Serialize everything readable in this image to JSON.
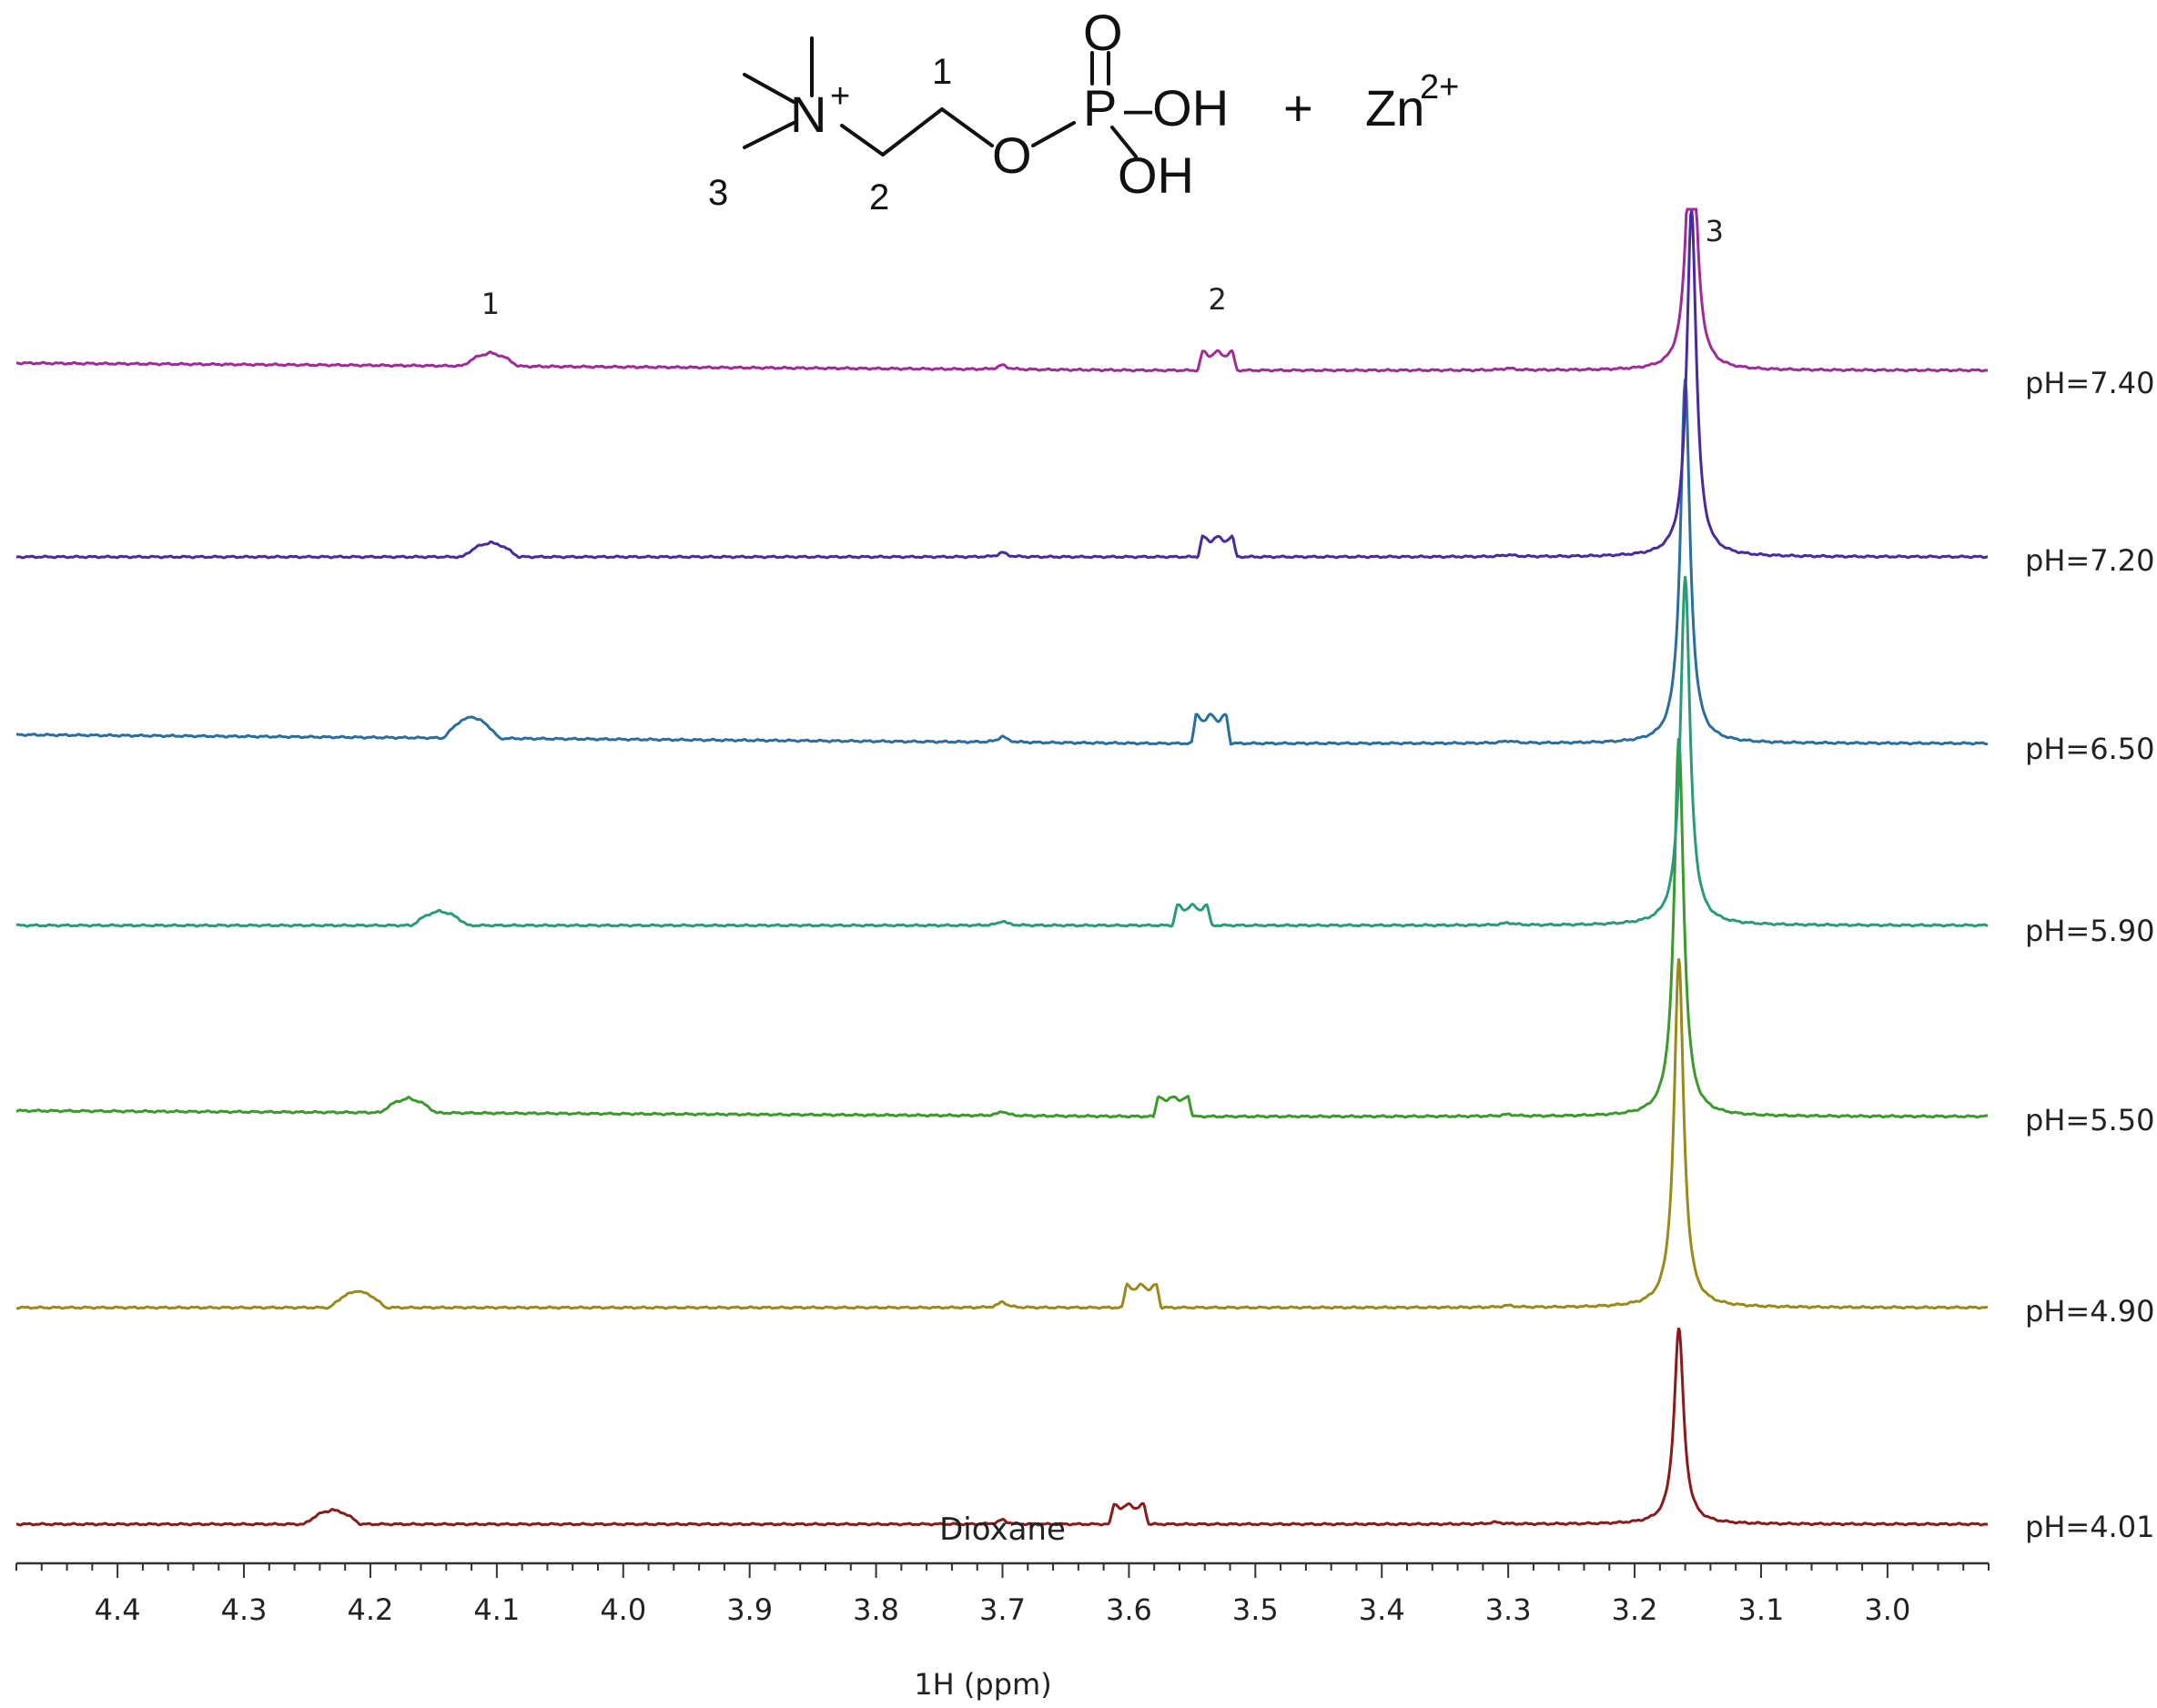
{
  "structure": {
    "atoms": {
      "nitrogen": "N",
      "nitrogen_charge": "+",
      "oxygen_bridge": "O",
      "oxygen_double": "O",
      "phosphorus": "P",
      "hydroxyl_top": "–OH",
      "hydroxyl_bottom": "OH"
    },
    "position_labels": {
      "p1": "1",
      "p2": "2",
      "p3": "3"
    },
    "plus_sign": "+",
    "metal_ion": "Zn",
    "metal_charge": "2+"
  },
  "chart_data": {
    "type": "line",
    "title": "",
    "xlabel": "1H (ppm)",
    "ylabel": "",
    "x_direction": "descending",
    "xlim": [
      4.48,
      2.92
    ],
    "x_ticks_major": [
      4.4,
      4.3,
      4.2,
      4.1,
      4.0,
      3.9,
      3.8,
      3.7,
      3.6,
      3.5,
      3.4,
      3.3,
      3.2,
      3.1,
      3.0
    ],
    "x_tick_labels": [
      "4.4",
      "4.3",
      "4.2",
      "4.1",
      "4.0",
      "3.9",
      "3.8",
      "3.7",
      "3.6",
      "3.5",
      "3.4",
      "3.3",
      "3.2",
      "3.1",
      "3.0"
    ],
    "x_minor_step": 0.02,
    "grid": false,
    "stacked": true,
    "annotations": {
      "peak_1": "1",
      "peak_2": "2",
      "peak_3": "3",
      "solvent_peak": "Dioxane",
      "peak_1_ppm": 4.105,
      "peak_2_ppm": 3.53,
      "peak_3_ppm": 3.16,
      "solvent_ppm": 3.7
    },
    "series": [
      {
        "name": "pH=4.01",
        "color": "#8b1a1a",
        "baseline_tilt": 0.0,
        "peaks": [
          {
            "ppm": 4.23,
            "height": 0.12,
            "width": 0.014,
            "shape": "broad"
          },
          {
            "ppm": 3.6,
            "height": 0.14,
            "width": 0.012,
            "shape": "multiplet"
          },
          {
            "ppm": 3.7,
            "height": 0.03,
            "width": 0.004,
            "shape": "sharp"
          },
          {
            "ppm": 3.31,
            "height": 0.012,
            "width": 0.006,
            "shape": "sharp"
          },
          {
            "ppm": 3.165,
            "height": 1.35,
            "width": 0.0045,
            "shape": "sharp"
          }
        ]
      },
      {
        "name": "pH=4.90",
        "color": "#9a8a1a",
        "baseline_tilt": 0.0,
        "peaks": [
          {
            "ppm": 4.21,
            "height": 0.14,
            "width": 0.014,
            "shape": "broad"
          },
          {
            "ppm": 3.59,
            "height": 0.16,
            "width": 0.012,
            "shape": "multiplet"
          },
          {
            "ppm": 3.7,
            "height": 0.04,
            "width": 0.004,
            "shape": "sharp"
          },
          {
            "ppm": 3.3,
            "height": 0.012,
            "width": 0.006,
            "shape": "sharp"
          },
          {
            "ppm": 3.165,
            "height": 2.4,
            "width": 0.0045,
            "shape": "sharp"
          }
        ]
      },
      {
        "name": "pH=5.50",
        "color": "#3a9a2a",
        "baseline_tilt": 0.04,
        "peaks": [
          {
            "ppm": 4.17,
            "height": 0.12,
            "width": 0.014,
            "shape": "broad"
          },
          {
            "ppm": 3.565,
            "height": 0.14,
            "width": 0.012,
            "shape": "multiplet"
          },
          {
            "ppm": 3.7,
            "height": 0.03,
            "width": 0.004,
            "shape": "sharp"
          },
          {
            "ppm": 3.3,
            "height": 0.012,
            "width": 0.006,
            "shape": "sharp"
          },
          {
            "ppm": 3.165,
            "height": 2.6,
            "width": 0.0045,
            "shape": "sharp"
          }
        ]
      },
      {
        "name": "pH=5.90",
        "color": "#2a9a7a",
        "baseline_tilt": 0.0,
        "peaks": [
          {
            "ppm": 4.145,
            "height": 0.12,
            "width": 0.014,
            "shape": "broad"
          },
          {
            "ppm": 3.55,
            "height": 0.14,
            "width": 0.012,
            "shape": "multiplet"
          },
          {
            "ppm": 3.7,
            "height": 0.03,
            "width": 0.004,
            "shape": "sharp"
          },
          {
            "ppm": 3.3,
            "height": 0.015,
            "width": 0.006,
            "shape": "sharp"
          },
          {
            "ppm": 3.16,
            "height": 2.4,
            "width": 0.0045,
            "shape": "sharp"
          }
        ]
      },
      {
        "name": "pH=6.50",
        "color": "#2a6ea0",
        "baseline_tilt": 0.06,
        "peaks": [
          {
            "ppm": 4.12,
            "height": 0.18,
            "width": 0.014,
            "shape": "broad"
          },
          {
            "ppm": 3.535,
            "height": 0.2,
            "width": 0.012,
            "shape": "multiplet"
          },
          {
            "ppm": 3.7,
            "height": 0.04,
            "width": 0.004,
            "shape": "sharp"
          },
          {
            "ppm": 3.3,
            "height": 0.015,
            "width": 0.006,
            "shape": "sharp"
          },
          {
            "ppm": 3.16,
            "height": 2.5,
            "width": 0.0045,
            "shape": "sharp"
          }
        ]
      },
      {
        "name": "pH=7.20",
        "color": "#4a2aa0",
        "baseline_tilt": 0.0,
        "peaks": [
          {
            "ppm": 4.105,
            "height": 0.12,
            "width": 0.014,
            "shape": "broad"
          },
          {
            "ppm": 3.53,
            "height": 0.14,
            "width": 0.012,
            "shape": "multiplet"
          },
          {
            "ppm": 3.7,
            "height": 0.03,
            "width": 0.004,
            "shape": "sharp"
          },
          {
            "ppm": 3.3,
            "height": 0.012,
            "width": 0.006,
            "shape": "sharp"
          },
          {
            "ppm": 3.155,
            "height": 2.4,
            "width": 0.0045,
            "shape": "sharp"
          }
        ]
      },
      {
        "name": "pH=7.40",
        "color": "#a02a9a",
        "baseline_tilt": 0.05,
        "peaks": [
          {
            "ppm": 4.105,
            "height": 0.11,
            "width": 0.014,
            "shape": "broad"
          },
          {
            "ppm": 3.53,
            "height": 0.13,
            "width": 0.012,
            "shape": "multiplet"
          },
          {
            "ppm": 3.7,
            "height": 0.03,
            "width": 0.004,
            "shape": "sharp"
          },
          {
            "ppm": 3.3,
            "height": 0.012,
            "width": 0.006,
            "shape": "sharp"
          },
          {
            "ppm": 3.155,
            "height": 2.0,
            "width": 0.0045,
            "shape": "sharp"
          }
        ]
      }
    ]
  }
}
